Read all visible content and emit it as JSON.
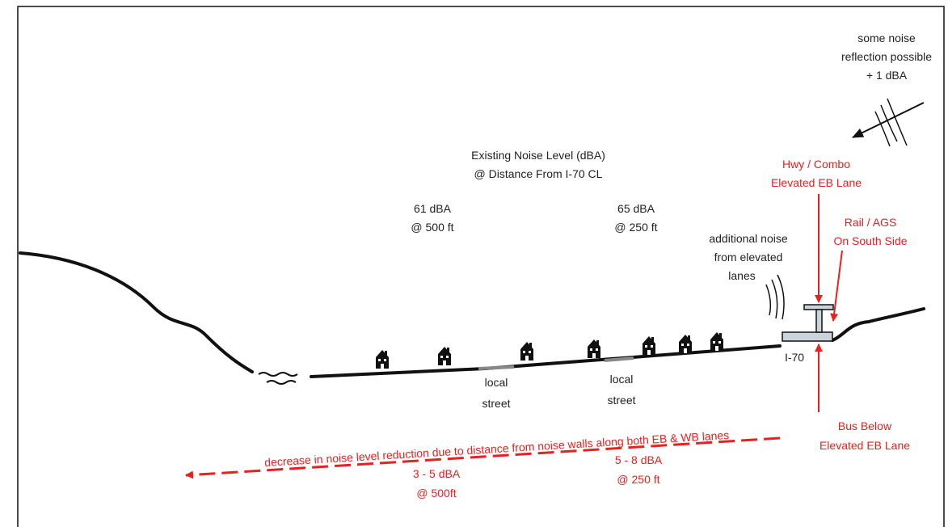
{
  "reflection_note": {
    "lines": [
      "some noise",
      "reflection possible",
      "+ 1 dBA"
    ]
  },
  "existing_title": {
    "lines": [
      "Existing Noise Level (dBA)",
      "@ Distance From I-70 CL"
    ]
  },
  "level_500": {
    "lines": [
      "61 dBA",
      "@ 500 ft"
    ]
  },
  "level_250": {
    "lines": [
      "65 dBA",
      "@ 250 ft"
    ]
  },
  "hwy_combo": {
    "lines": [
      "Hwy / Combo",
      "Elevated EB Lane"
    ]
  },
  "rail_ags": {
    "lines": [
      "Rail / AGS",
      "On South Side"
    ]
  },
  "elevated_noise": {
    "lines": [
      "additional noise",
      "from elevated",
      "lanes"
    ]
  },
  "highway_label": "I-70",
  "street_1": {
    "lines": [
      "local",
      "street"
    ]
  },
  "street_2": {
    "lines": [
      "local",
      "street"
    ]
  },
  "bus_below": {
    "lines": [
      "Bus Below",
      "Elevated EB Lane"
    ]
  },
  "decrease_note": "decrease in noise level reduction due to distance from noise walls along both EB & WB lanes",
  "reduction_500": {
    "lines": [
      "3 - 5 dBA",
      "@ 500ft"
    ]
  },
  "reduction_250": {
    "lines": [
      "5 - 8 dBA",
      "@ 250 ft"
    ]
  }
}
